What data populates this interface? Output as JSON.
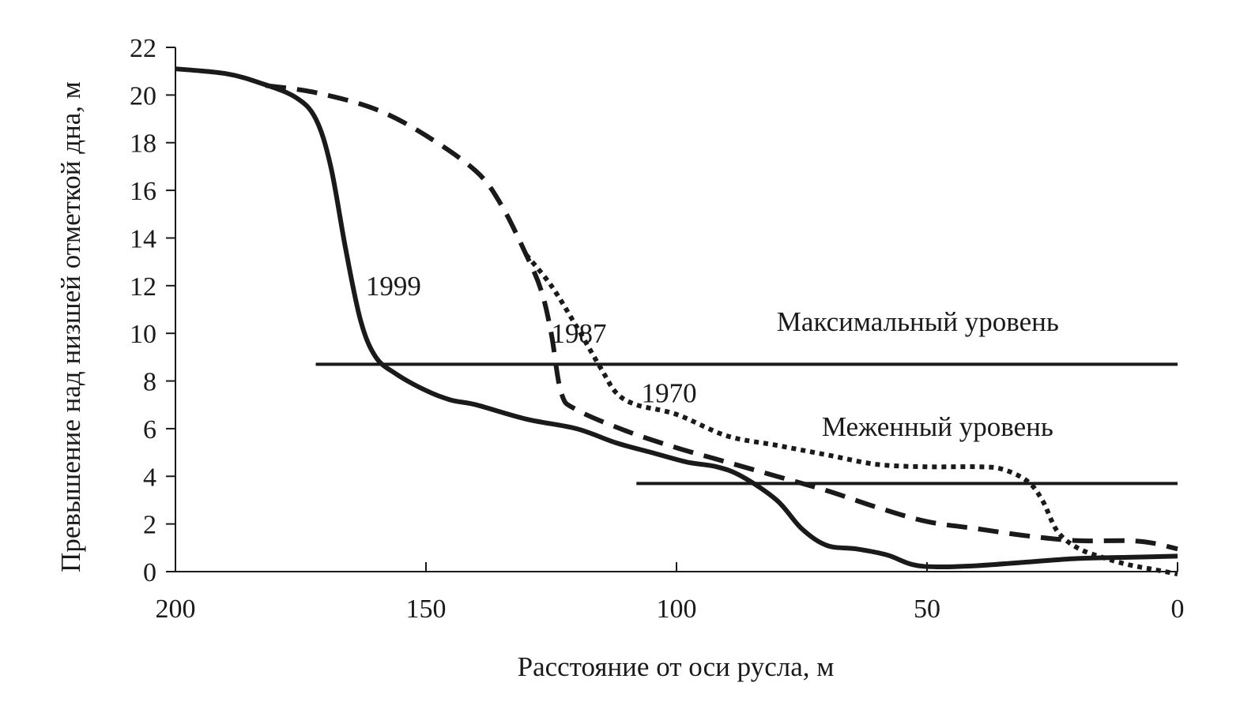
{
  "chart_data": {
    "type": "line",
    "title": "",
    "xlabel": "Расстояние от оси русла, м",
    "ylabel": "Превышение над низшей отметкой дна, м",
    "xlim": [
      200,
      0
    ],
    "ylim": [
      0,
      22
    ],
    "x_reversed": true,
    "xticks": [
      200,
      150,
      100,
      50,
      0
    ],
    "yticks": [
      0,
      2,
      4,
      6,
      8,
      10,
      12,
      14,
      16,
      18,
      20,
      22
    ],
    "grid": false,
    "legend": "none",
    "series": [
      {
        "name": "1999",
        "style": "solid",
        "color": "#1a1a1a",
        "points": [
          [
            200,
            21.1
          ],
          [
            190,
            20.9
          ],
          [
            183,
            20.5
          ],
          [
            176,
            19.9
          ],
          [
            172,
            19.0
          ],
          [
            169,
            17.0
          ],
          [
            166,
            13.5
          ],
          [
            163,
            10.5
          ],
          [
            160,
            9.0
          ],
          [
            156,
            8.3
          ],
          [
            150,
            7.6
          ],
          [
            145,
            7.2
          ],
          [
            140,
            7.0
          ],
          [
            130,
            6.4
          ],
          [
            120,
            6.0
          ],
          [
            112,
            5.4
          ],
          [
            105,
            5.0
          ],
          [
            98,
            4.6
          ],
          [
            92,
            4.4
          ],
          [
            87,
            4.0
          ],
          [
            80,
            3.0
          ],
          [
            75,
            1.8
          ],
          [
            70,
            1.1
          ],
          [
            64,
            0.95
          ],
          [
            58,
            0.7
          ],
          [
            53,
            0.3
          ],
          [
            48,
            0.2
          ],
          [
            40,
            0.25
          ],
          [
            30,
            0.4
          ],
          [
            20,
            0.55
          ],
          [
            10,
            0.6
          ],
          [
            0,
            0.65
          ]
        ]
      },
      {
        "name": "1987",
        "style": "dashed",
        "color": "#1a1a1a",
        "points": [
          [
            182,
            20.4
          ],
          [
            172,
            20.1
          ],
          [
            160,
            19.4
          ],
          [
            150,
            18.3
          ],
          [
            140,
            16.8
          ],
          [
            135,
            15.4
          ],
          [
            130,
            13.3
          ],
          [
            127,
            11.8
          ],
          [
            125,
            10.0
          ],
          [
            123,
            7.5
          ],
          [
            120,
            6.8
          ],
          [
            110,
            5.9
          ],
          [
            100,
            5.2
          ],
          [
            90,
            4.6
          ],
          [
            80,
            4.0
          ],
          [
            70,
            3.4
          ],
          [
            60,
            2.7
          ],
          [
            50,
            2.1
          ],
          [
            40,
            1.8
          ],
          [
            30,
            1.5
          ],
          [
            20,
            1.3
          ],
          [
            10,
            1.3
          ],
          [
            5,
            1.2
          ],
          [
            0,
            0.95
          ]
        ]
      },
      {
        "name": "1970",
        "style": "dotted",
        "color": "#1a1a1a",
        "points": [
          [
            130,
            13.3
          ],
          [
            125,
            12.0
          ],
          [
            120,
            10.3
          ],
          [
            115,
            8.5
          ],
          [
            112,
            7.5
          ],
          [
            108,
            7.0
          ],
          [
            100,
            6.6
          ],
          [
            90,
            5.7
          ],
          [
            80,
            5.3
          ],
          [
            70,
            4.9
          ],
          [
            60,
            4.5
          ],
          [
            50,
            4.4
          ],
          [
            40,
            4.4
          ],
          [
            35,
            4.3
          ],
          [
            30,
            3.8
          ],
          [
            27,
            3.0
          ],
          [
            24,
            1.7
          ],
          [
            20,
            1.0
          ],
          [
            15,
            0.6
          ],
          [
            10,
            0.3
          ],
          [
            5,
            0.1
          ],
          [
            0,
            -0.1
          ]
        ]
      }
    ],
    "reference_lines": [
      {
        "name": "Максимальный уровень",
        "y": 8.7,
        "x_from": 172,
        "x_to": 0
      },
      {
        "name": "Меженный уровень",
        "y": 3.7,
        "x_from": 108,
        "x_to": 0
      }
    ],
    "annotations": [
      {
        "text": "1999",
        "x": 162,
        "y": 12.0
      },
      {
        "text": "1987",
        "x": 125,
        "y": 10.0
      },
      {
        "text": "1970",
        "x": 107,
        "y": 7.5
      },
      {
        "text": "Максимальный уровень",
        "x": 80,
        "y": 10.5
      },
      {
        "text": "Меженный уровень",
        "x": 71,
        "y": 6.1
      }
    ]
  }
}
